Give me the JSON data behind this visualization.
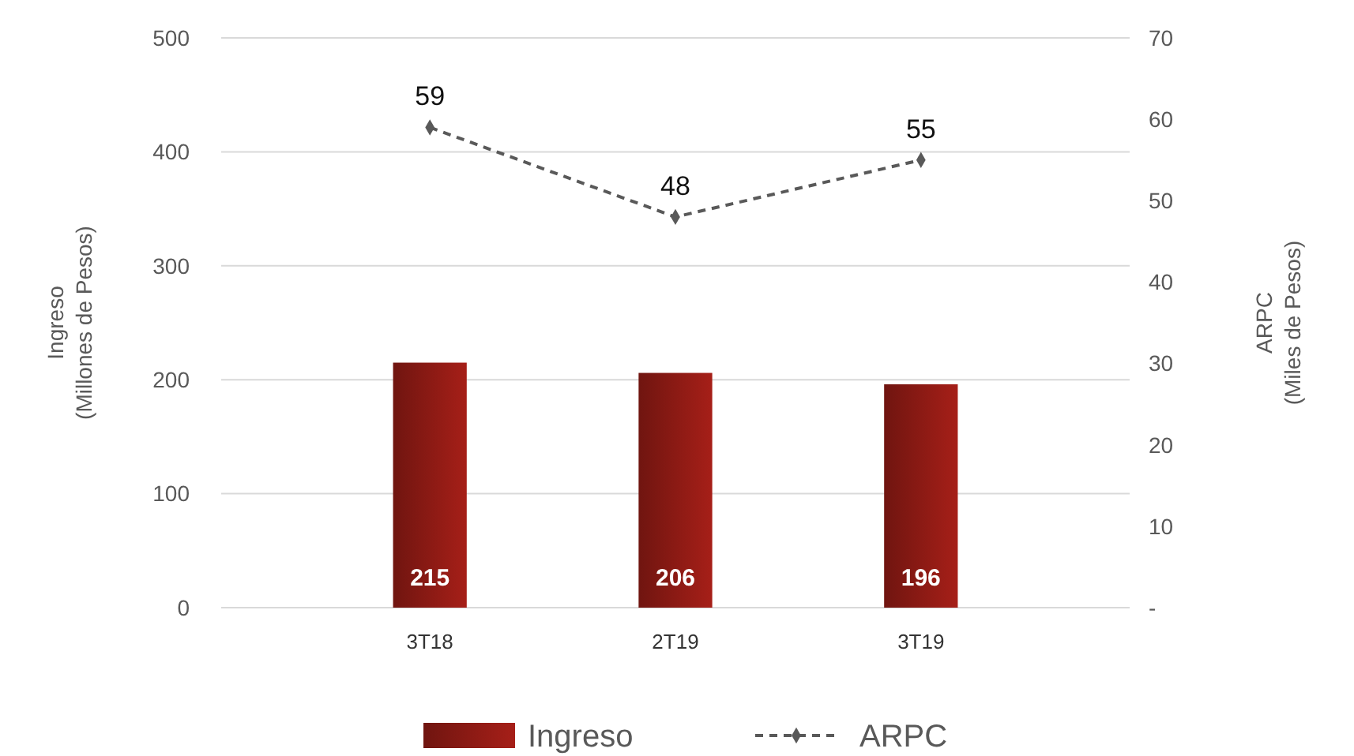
{
  "chart_data": {
    "type": "bar",
    "categories": [
      "3T18",
      "2T19",
      "3T19"
    ],
    "series": [
      {
        "name": "Ingreso",
        "color": "#8b1a14",
        "values": [
          215,
          206,
          196
        ]
      },
      {
        "name": "ARPC",
        "type": "line",
        "axis": "y2",
        "color": "#595959",
        "values": [
          59,
          48,
          55
        ],
        "marker": "diamond",
        "line_style": "dashed"
      }
    ],
    "ylabel": "Ingreso\n(Millones de Pesos)",
    "y2label": "ARPC\n(Miles de Pesos)",
    "ylim": [
      0,
      500
    ],
    "yticks": [
      0,
      100,
      200,
      300,
      400,
      500
    ],
    "y2lim": [
      0,
      70
    ],
    "y2ticks": [
      {
        "value": 0,
        "label": "-"
      },
      10,
      20,
      30,
      40,
      50,
      60,
      70
    ],
    "grid": "y",
    "legend": "bottom",
    "data_labels": true
  }
}
